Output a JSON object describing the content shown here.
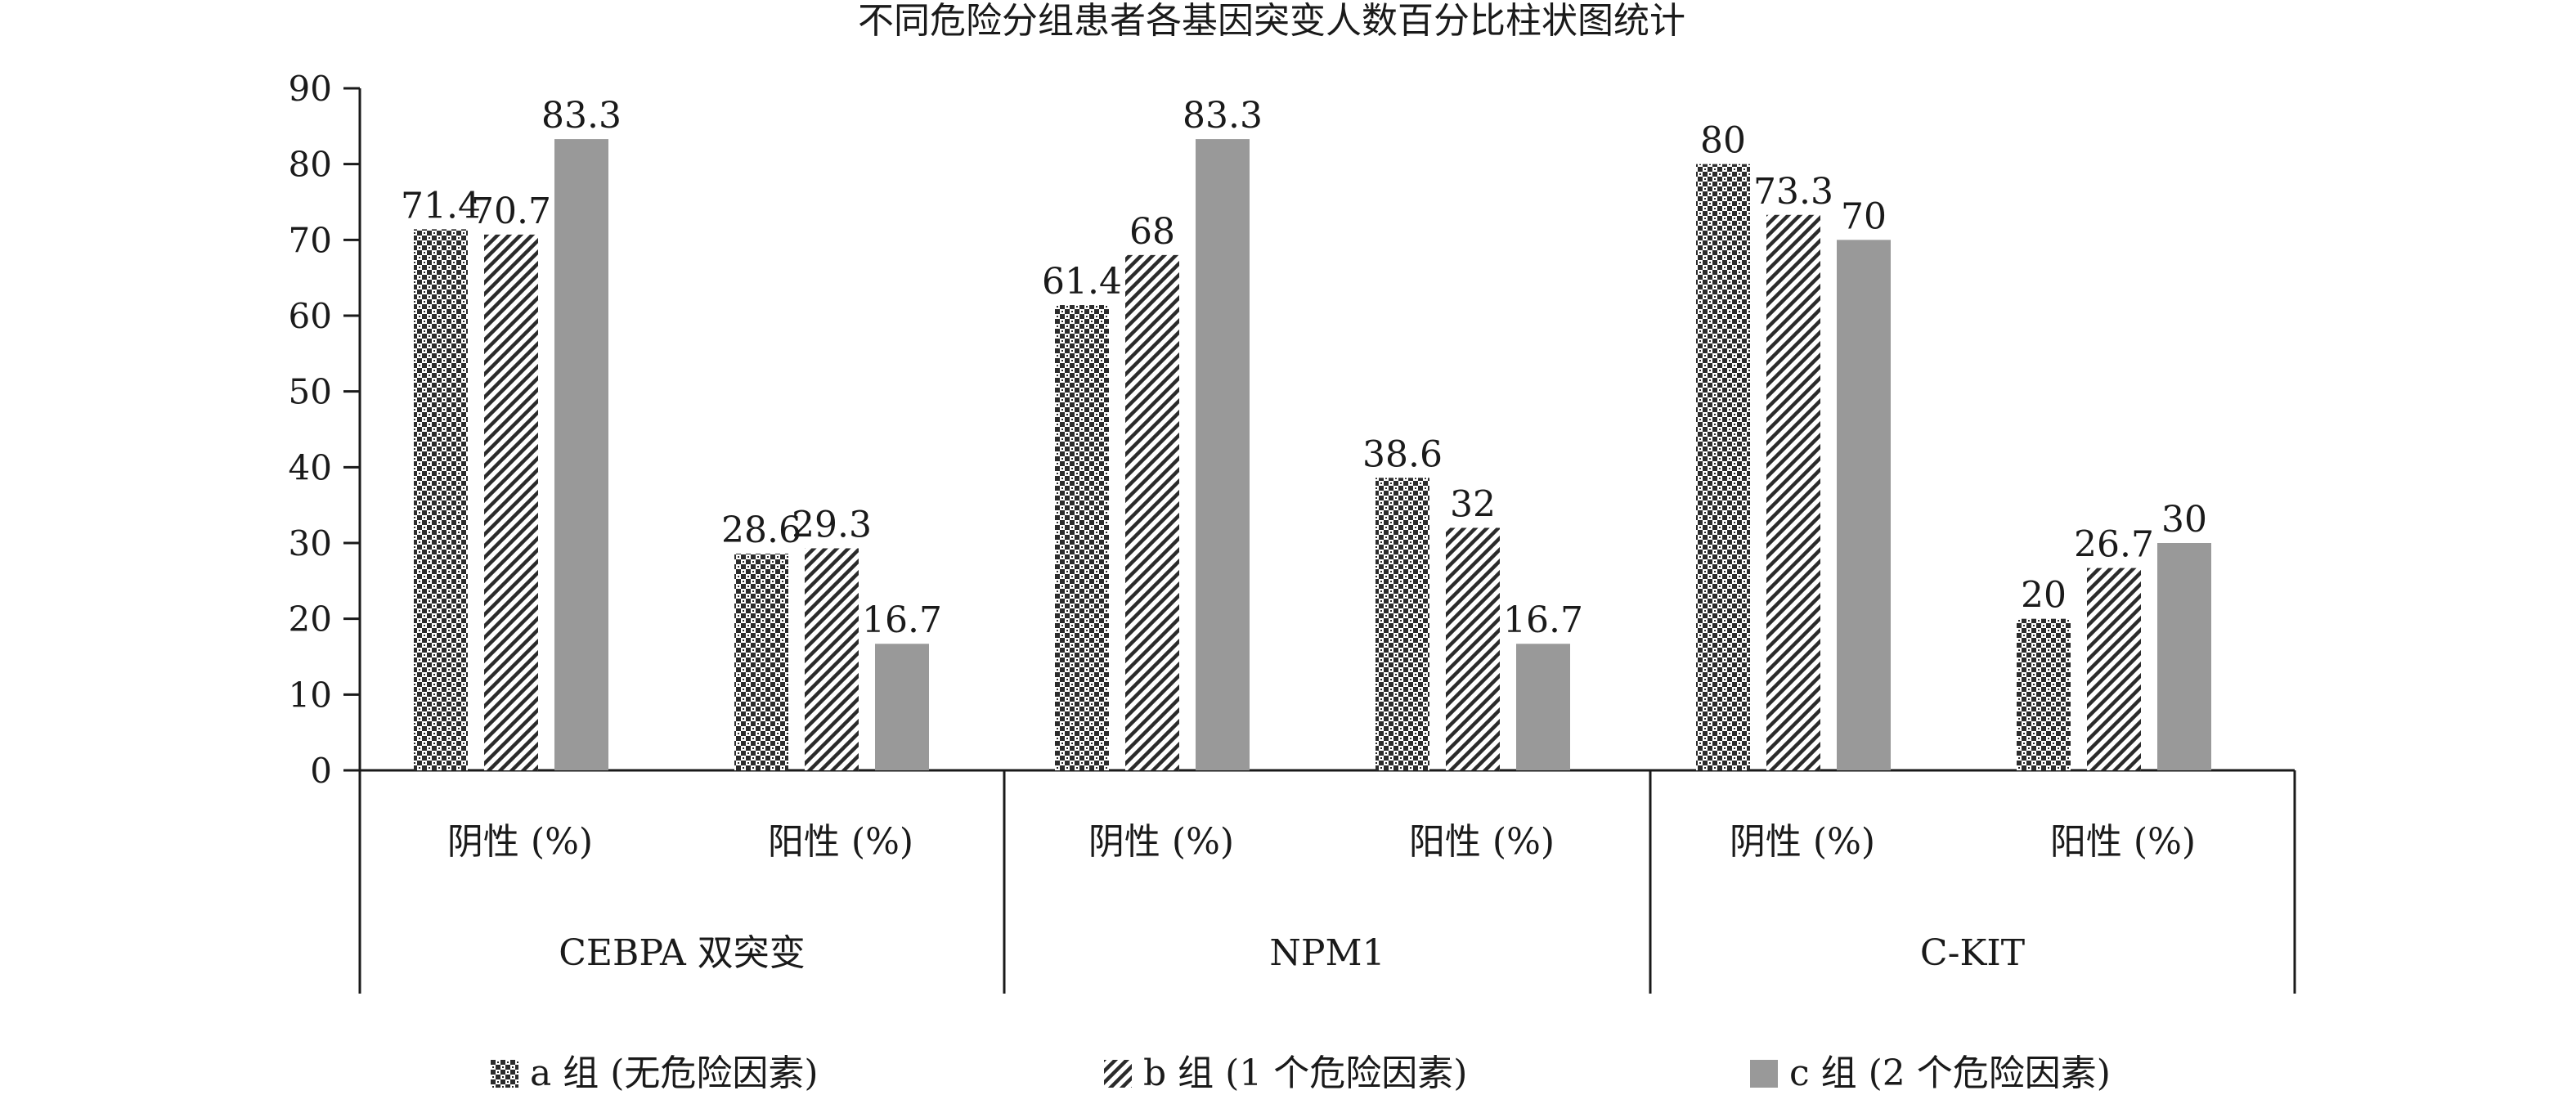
{
  "chart_data": {
    "type": "bar",
    "title": "不同危险分组患者各基因突变人数百分比柱状图统计",
    "xlabel": "",
    "ylabel": "",
    "ylim": [
      0,
      90
    ],
    "yticks": [
      "0",
      "10",
      "20",
      "30",
      "40",
      "50",
      "60",
      "70",
      "80",
      "90"
    ],
    "grid": false,
    "legend_position": "bottom",
    "groups": [
      {
        "name": "CEBPA 双突变",
        "categories": [
          "阴性 (%)",
          "阳性 (%)"
        ]
      },
      {
        "name": "NPM1",
        "categories": [
          "阴性 (%)",
          "阳性 (%)"
        ]
      },
      {
        "name": "C-KIT",
        "categories": [
          "阴性 (%)",
          "阳性 (%)"
        ]
      }
    ],
    "series": [
      {
        "name": "a 组 (无危险因素)",
        "pattern": "checker",
        "values": [
          71.4,
          28.6,
          61.4,
          38.6,
          80,
          20
        ],
        "labels": [
          "71.4",
          "28.6",
          "61.4",
          "38.6",
          "80",
          "20"
        ]
      },
      {
        "name": "b 组 (1 个危险因素)",
        "pattern": "diagonal",
        "values": [
          70.7,
          29.3,
          68,
          32,
          73.3,
          26.7
        ],
        "labels": [
          "70.7",
          "29.3",
          "68",
          "32",
          "73.3",
          "26.7"
        ]
      },
      {
        "name": "c 组 (2 个危险因素)",
        "pattern": "solid",
        "values": [
          83.3,
          16.7,
          83.3,
          16.7,
          70,
          30
        ],
        "labels": [
          "83.3",
          "16.7",
          "83.3",
          "16.7",
          "70",
          "30"
        ]
      }
    ],
    "colors": {
      "solid_fill": "#999999",
      "pattern_ink": "#2b2b2b",
      "axis": "#1a1a1a"
    }
  }
}
